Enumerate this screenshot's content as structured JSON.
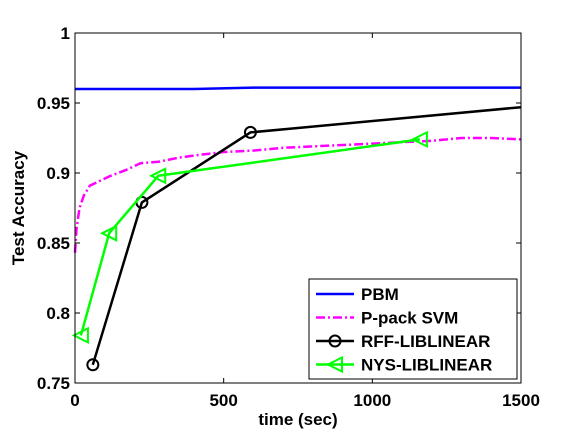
{
  "chart_data": {
    "type": "line",
    "title": "",
    "xlabel": "time (sec)",
    "ylabel": "Test Accuracy",
    "xlim": [
      0,
      1500
    ],
    "ylim": [
      0.75,
      1.0
    ],
    "xticks": [
      0,
      500,
      1000,
      1500
    ],
    "xtick_labels": [
      "0",
      "500",
      "1000",
      "1500"
    ],
    "yticks": [
      0.75,
      0.8,
      0.85,
      0.9,
      0.95,
      1.0
    ],
    "ytick_labels": [
      "0.75",
      "0.8",
      "0.85",
      "0.9",
      "0.95",
      "1"
    ],
    "grid": false,
    "legend_position": "bottom-right",
    "series": [
      {
        "name": "PBM",
        "color": "#0000ff",
        "line_style": "solid",
        "marker": "none",
        "x": [
          0,
          200,
          400,
          600,
          800,
          1000,
          1200,
          1500
        ],
        "y": [
          0.96,
          0.96,
          0.96,
          0.961,
          0.961,
          0.961,
          0.961,
          0.961
        ]
      },
      {
        "name": "P-pack SVM",
        "color": "#ff00ff",
        "line_style": "dashdot",
        "marker": "none",
        "x": [
          0,
          5,
          15,
          30,
          50,
          80,
          120,
          170,
          220,
          280,
          350,
          420,
          500,
          600,
          700,
          800,
          900,
          1000,
          1100,
          1200,
          1300,
          1400,
          1500
        ],
        "y": [
          0.843,
          0.86,
          0.875,
          0.884,
          0.891,
          0.894,
          0.898,
          0.902,
          0.907,
          0.908,
          0.911,
          0.913,
          0.915,
          0.916,
          0.918,
          0.919,
          0.92,
          0.921,
          0.922,
          0.923,
          0.925,
          0.925,
          0.924
        ]
      },
      {
        "name": "RFF-LIBLINEAR",
        "color": "#000000",
        "line_style": "solid",
        "marker": "circle",
        "x": [
          60,
          225,
          590,
          1500
        ],
        "y": [
          0.763,
          0.879,
          0.929,
          0.947
        ],
        "marker_x": [
          60,
          225,
          590
        ],
        "marker_y": [
          0.763,
          0.879,
          0.929
        ]
      },
      {
        "name": "NYS-LIBLINEAR",
        "color": "#00ff00",
        "line_style": "solid",
        "marker": "triangle-left",
        "x": [
          20,
          115,
          280,
          1160
        ],
        "y": [
          0.784,
          0.857,
          0.898,
          0.924
        ],
        "marker_x": [
          20,
          115,
          280,
          1160
        ],
        "marker_y": [
          0.784,
          0.857,
          0.898,
          0.924
        ]
      }
    ]
  }
}
